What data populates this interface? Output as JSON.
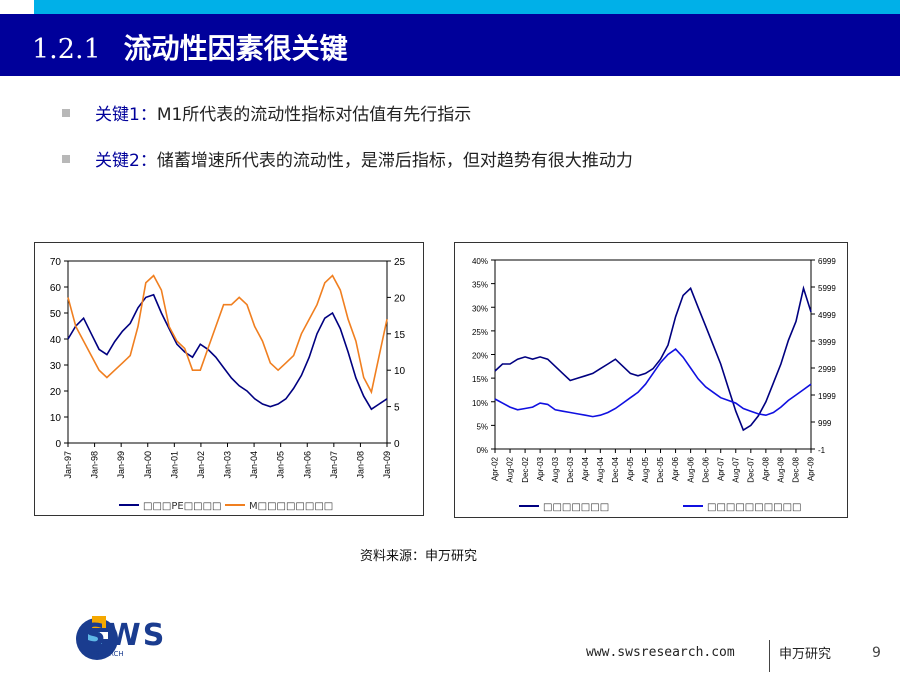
{
  "header": {
    "number": "1.2.1",
    "title": "流动性因素很关键"
  },
  "bullets": [
    {
      "key": "关键1：",
      "text": "M1所代表的流动性指标对估值有先行指示"
    },
    {
      "key": "关键2：",
      "text": "储蓄增速所代表的流动性，是滞后指标，但对趋势有很大推动力"
    }
  ],
  "chart_data": [
    {
      "type": "line",
      "x_tick_labels": [
        "Jan-97",
        "Jan-98",
        "Jan-99",
        "Jan-00",
        "Jan-01",
        "Jan-02",
        "Jan-03",
        "Jan-04",
        "Jan-05",
        "Jan-06",
        "Jan-07",
        "Jan-08",
        "Jan-09"
      ],
      "y_left_ticks": [
        "70",
        "60",
        "50",
        "40",
        "30",
        "20",
        "10",
        "0"
      ],
      "y_right_ticks": [
        "25",
        "20",
        "15",
        "10",
        "5",
        "0"
      ],
      "ylim_left": [
        0,
        70
      ],
      "ylim_right": [
        0,
        25
      ],
      "series": [
        {
          "name": "□□□PE□□□□",
          "axis": "left",
          "color": "#000080",
          "values": [
            40,
            45,
            48,
            42,
            36,
            34,
            39,
            43,
            46,
            52,
            56,
            57,
            50,
            44,
            38,
            35,
            33,
            38,
            36,
            33,
            29,
            25,
            22,
            20,
            17,
            15,
            14,
            15,
            17,
            21,
            26,
            33,
            42,
            48,
            50,
            44,
            35,
            25,
            18,
            13,
            15,
            17
          ]
        },
        {
          "name": "M□□□□□□□□",
          "axis": "right",
          "color": "#f07f20",
          "values": [
            20,
            16,
            14,
            12,
            10,
            9,
            10,
            11,
            12,
            16,
            22,
            23,
            21,
            16,
            14,
            13,
            10,
            10,
            13,
            16,
            19,
            19,
            20,
            19,
            16,
            14,
            11,
            10,
            11,
            12,
            15,
            17,
            19,
            22,
            23,
            21,
            17,
            14,
            9,
            7,
            12,
            17
          ]
        }
      ]
    },
    {
      "type": "line",
      "x_tick_labels": [
        "Apr-02",
        "Aug-02",
        "Dec-02",
        "Apr-03",
        "Aug-03",
        "Dec-03",
        "Apr-04",
        "Aug-04",
        "Dec-04",
        "Apr-05",
        "Aug-05",
        "Dec-05",
        "Apr-06",
        "Aug-06",
        "Dec-06",
        "Apr-07",
        "Aug-07",
        "Dec-07",
        "Apr-08",
        "Aug-08",
        "Dec-08",
        "Apr-09"
      ],
      "y_left_ticks": [
        "40%",
        "35%",
        "30%",
        "25%",
        "20%",
        "15%",
        "10%",
        "5%",
        "0%"
      ],
      "y_right_ticks": [
        "6999",
        "5999",
        "4999",
        "3999",
        "2999",
        "1999",
        "999",
        "-1"
      ],
      "ylim_left": [
        0,
        0.4
      ],
      "ylim_right": [
        -1,
        6999
      ],
      "series": [
        {
          "name": "□□□□□□□",
          "axis": "left",
          "color": "#000080",
          "values": [
            0.165,
            0.18,
            0.18,
            0.19,
            0.195,
            0.19,
            0.195,
            0.19,
            0.175,
            0.16,
            0.145,
            0.15,
            0.155,
            0.16,
            0.17,
            0.18,
            0.19,
            0.175,
            0.16,
            0.155,
            0.16,
            0.17,
            0.19,
            0.22,
            0.28,
            0.325,
            0.34,
            0.3,
            0.26,
            0.22,
            0.18,
            0.13,
            0.08,
            0.04,
            0.05,
            0.07,
            0.1,
            0.14,
            0.18,
            0.23,
            0.27,
            0.34,
            0.29
          ]
        },
        {
          "name": "□□□□□□□□□□",
          "axis": "right",
          "color": "#1010e0",
          "values": [
            1850,
            1700,
            1550,
            1450,
            1500,
            1550,
            1700,
            1650,
            1450,
            1400,
            1350,
            1300,
            1250,
            1200,
            1250,
            1350,
            1500,
            1700,
            1900,
            2100,
            2400,
            2800,
            3200,
            3500,
            3700,
            3400,
            3000,
            2600,
            2300,
            2100,
            1900,
            1800,
            1700,
            1500,
            1400,
            1300,
            1250,
            1350,
            1550,
            1800,
            2000,
            2200,
            2400
          ]
        }
      ]
    }
  ],
  "source": "资料来源：申万研究",
  "logo": {
    "text": "SWS",
    "subtext": "RESEARCH"
  },
  "footer": {
    "url": "www.swsresearch.com",
    "brand": "申万研究",
    "page": "9"
  }
}
